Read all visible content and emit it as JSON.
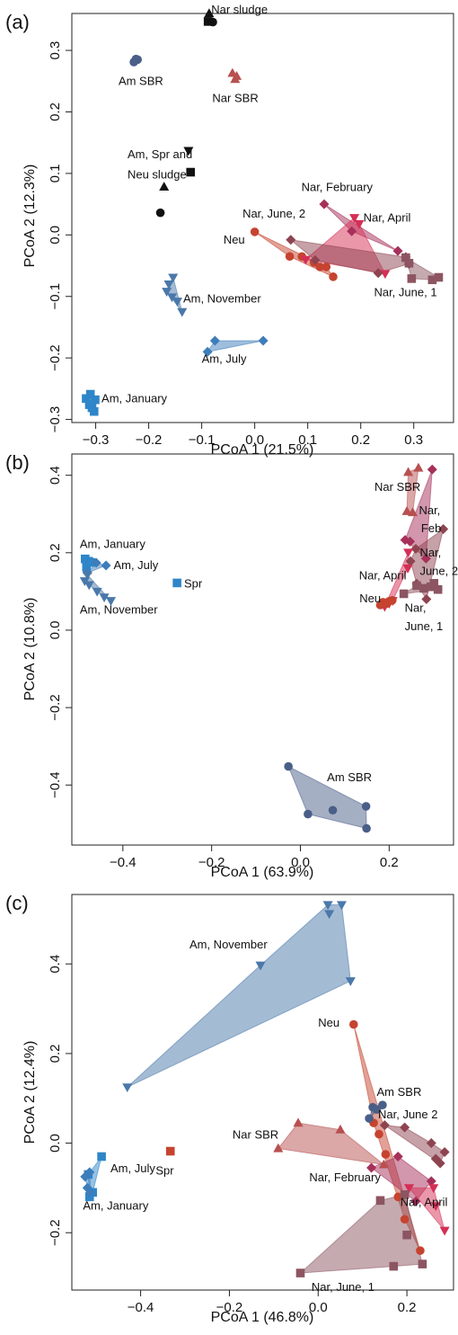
{
  "chart_data": [
    {
      "type": "scatter",
      "panel_label": "(a)",
      "xlabel": "PCoA 1 (21.5%)",
      "ylabel": "PCoA 2 (12.3%)",
      "xlim": [
        -0.345,
        0.375
      ],
      "ylim": [
        -0.305,
        0.36
      ],
      "xticks": [
        -0.3,
        -0.2,
        -0.1,
        0.0,
        0.1,
        0.2,
        0.3
      ],
      "xtick_labels": [
        "−0.3",
        "−0.2",
        "−0.1",
        "0.0",
        "0.1",
        "0.2",
        "0.3"
      ],
      "yticks": [
        -0.3,
        -0.2,
        -0.1,
        0.0,
        0.1,
        0.2,
        0.3
      ],
      "ytick_labels": [
        "−0.3",
        "−0.2",
        "−0.1",
        "0.0",
        "0.1",
        "0.2",
        "0.3"
      ],
      "grid": false,
      "series": [
        {
          "name": "Nar sludge",
          "marker": "triangle-up",
          "color": "#111111",
          "hull": false,
          "x": [
            -0.086
          ],
          "y": [
            0.36
          ]
        },
        {
          "name": "",
          "marker": "square",
          "color": "#111111",
          "hull": false,
          "x": [
            -0.088
          ],
          "y": [
            0.347
          ]
        },
        {
          "name": "",
          "marker": "circle",
          "color": "#111111",
          "hull": false,
          "x": [
            -0.079
          ],
          "y": [
            0.346
          ]
        },
        {
          "name": "Am, Spr and Neu sludge",
          "marker": "triangle-down",
          "color": "#111111",
          "hull": false,
          "x": [
            -0.125
          ],
          "y": [
            0.137
          ]
        },
        {
          "name": "",
          "marker": "square",
          "color": "#111111",
          "hull": false,
          "x": [
            -0.121
          ],
          "y": [
            0.102
          ]
        },
        {
          "name": "",
          "marker": "triangle-up",
          "color": "#111111",
          "hull": false,
          "x": [
            -0.171
          ],
          "y": [
            0.078
          ]
        },
        {
          "name": "",
          "marker": "circle",
          "color": "#111111",
          "hull": false,
          "x": [
            -0.178
          ],
          "y": [
            0.036
          ]
        },
        {
          "name": "Am SBR",
          "marker": "circle",
          "color": "#4a5f88",
          "hull": true,
          "x": [
            -0.228,
            -0.224,
            -0.221
          ],
          "y": [
            0.281,
            0.286,
            0.285
          ]
        },
        {
          "name": "Nar SBR",
          "marker": "triangle-up",
          "color": "#b85050",
          "hull": true,
          "x": [
            -0.042,
            -0.037,
            -0.034
          ],
          "y": [
            0.263,
            0.253,
            0.258
          ]
        },
        {
          "name": "Am, November",
          "marker": "triangle-down",
          "color": "#4a78aa",
          "hull": true,
          "x": [
            -0.154,
            -0.162,
            -0.166,
            -0.156,
            -0.146,
            -0.137
          ],
          "y": [
            -0.069,
            -0.08,
            -0.092,
            -0.101,
            -0.108,
            -0.125
          ]
        },
        {
          "name": "Am, July",
          "marker": "diamond",
          "color": "#3d7dba",
          "hull": true,
          "x": [
            -0.075,
            -0.089,
            0.016
          ],
          "y": [
            -0.172,
            -0.19,
            -0.172
          ]
        },
        {
          "name": "Am, January",
          "marker": "square",
          "color": "#2e86c8",
          "hull": true,
          "x": [
            -0.318,
            -0.31,
            -0.301,
            -0.312,
            -0.307,
            -0.303
          ],
          "y": [
            -0.266,
            -0.259,
            -0.268,
            -0.276,
            -0.281,
            -0.287
          ]
        },
        {
          "name": "Neu",
          "marker": "circle",
          "color": "#c5432f",
          "hull": true,
          "x": [
            0.0,
            0.066,
            0.089,
            0.112,
            0.135,
            0.148,
            0.123
          ],
          "y": [
            0.005,
            -0.035,
            -0.035,
            -0.045,
            -0.052,
            -0.068,
            -0.052
          ]
        },
        {
          "name": "Nar, February",
          "marker": "diamond",
          "color": "#a6305a",
          "hull": true,
          "x": [
            0.131,
            0.183,
            0.27
          ],
          "y": [
            0.05,
            0.006,
            -0.026
          ]
        },
        {
          "name": "Nar, April",
          "marker": "triangle-down",
          "color": "#d52f56",
          "hull": true,
          "x": [
            0.188,
            0.197,
            0.096,
            0.246
          ],
          "y": [
            0.028,
            0.018,
            -0.04,
            -0.063
          ]
        },
        {
          "name": "Nar, June, 2",
          "marker": "diamond",
          "color": "#8e4450",
          "hull": true,
          "x": [
            0.068,
            0.114,
            0.285,
            0.291,
            0.233
          ],
          "y": [
            -0.008,
            -0.041,
            -0.036,
            -0.047,
            -0.062
          ]
        },
        {
          "name": "Nar, June, 1",
          "marker": "square",
          "color": "#8c5561",
          "hull": true,
          "x": [
            0.285,
            0.291,
            0.296,
            0.335,
            0.347
          ],
          "y": [
            -0.037,
            -0.046,
            -0.071,
            -0.073,
            -0.069
          ]
        }
      ],
      "labels": [
        {
          "text": "Nar sludge",
          "x": -0.082,
          "y": 0.36
        },
        {
          "text": "Am SBR",
          "x": -0.257,
          "y": 0.244
        },
        {
          "text": "Nar SBR",
          "x": -0.08,
          "y": 0.216
        },
        {
          "text": "Am, Spr and",
          "x": -0.24,
          "y": 0.125
        },
        {
          "text": "Neu sludge",
          "x": -0.24,
          "y": 0.092
        },
        {
          "text": "Nar, February",
          "x": 0.088,
          "y": 0.071
        },
        {
          "text": "Nar, April",
          "x": 0.205,
          "y": 0.022
        },
        {
          "text": "Nar, June, 2",
          "x": -0.023,
          "y": 0.028
        },
        {
          "text": "Neu",
          "x": -0.059,
          "y": -0.014
        },
        {
          "text": "Nar, June, 1",
          "x": 0.225,
          "y": -0.1
        },
        {
          "text": "Am, November",
          "x": -0.135,
          "y": -0.11
        },
        {
          "text": "Am, July",
          "x": -0.1,
          "y": -0.208
        },
        {
          "text": "Am, January",
          "x": -0.289,
          "y": -0.272
        }
      ]
    },
    {
      "type": "scatter",
      "panel_label": "(b)",
      "xlabel": "PCoA 1 (63.9%)",
      "ylabel": "PCoA 2 (10.8%)",
      "xlim": [
        -0.515,
        0.345
      ],
      "ylim": [
        -0.555,
        0.455
      ],
      "xticks": [
        -0.4,
        -0.2,
        0.0,
        0.2
      ],
      "xtick_labels": [
        "−0.4",
        "−0.2",
        "0.0",
        "0.2"
      ],
      "yticks": [
        -0.4,
        -0.2,
        0.0,
        0.2,
        0.4
      ],
      "ytick_labels": [
        "−0.4",
        "−0.2",
        "0.0",
        "0.2",
        "0.4"
      ],
      "grid": false,
      "series": [
        {
          "name": "Am, January",
          "marker": "square",
          "color": "#2e86c8",
          "hull": true,
          "x": [
            -0.485,
            -0.477,
            -0.482,
            -0.472
          ],
          "y": [
            0.184,
            0.178,
            0.163,
            0.175
          ]
        },
        {
          "name": "Am, July",
          "marker": "diamond",
          "color": "#3d7dba",
          "hull": true,
          "x": [
            -0.46,
            -0.438,
            -0.48
          ],
          "y": [
            0.174,
            0.167,
            0.148
          ]
        },
        {
          "name": "Am, November",
          "marker": "triangle-down",
          "color": "#4a78aa",
          "hull": true,
          "x": [
            -0.48,
            -0.486,
            -0.476,
            -0.458,
            -0.442,
            -0.427
          ],
          "y": [
            0.143,
            0.127,
            0.117,
            0.1,
            0.085,
            0.076
          ]
        },
        {
          "name": "Spr",
          "marker": "square",
          "color": "#2e86c8",
          "hull": false,
          "x": [
            -0.278
          ],
          "y": [
            0.122
          ]
        },
        {
          "name": "Am SBR",
          "marker": "circle",
          "color": "#4a5f88",
          "hull": true,
          "x": [
            -0.027,
            0.017,
            0.073,
            0.148,
            0.149
          ],
          "y": [
            -0.352,
            -0.475,
            -0.465,
            -0.455,
            -0.512
          ]
        },
        {
          "name": "Nar SBR",
          "marker": "triangle-up",
          "color": "#b85050",
          "hull": true,
          "x": [
            0.243,
            0.266,
            0.24,
            0.253
          ],
          "y": [
            0.408,
            0.419,
            0.307,
            0.304
          ]
        },
        {
          "name": "Nar, Feb",
          "marker": "diamond",
          "color": "#a6305a",
          "hull": true,
          "x": [
            0.236,
            0.247,
            0.297,
            0.283
          ],
          "y": [
            0.233,
            0.229,
            0.415,
            0.185
          ]
        },
        {
          "name": "Nar, June, 2",
          "marker": "diamond",
          "color": "#8e4450",
          "hull": true,
          "x": [
            0.322,
            0.26,
            0.248,
            0.262,
            0.284
          ],
          "y": [
            0.261,
            0.21,
            0.178,
            0.12,
            0.08
          ]
        },
        {
          "name": "Nar, April",
          "marker": "triangle-down",
          "color": "#d52f56",
          "hull": true,
          "x": [
            0.243,
            0.242,
            0.19,
            0.208,
            0.2
          ],
          "y": [
            0.201,
            0.16,
            0.061,
            0.076,
            0.069
          ]
        },
        {
          "name": "Nar, June, 1",
          "marker": "square",
          "color": "#8c5561",
          "hull": true,
          "x": [
            0.262,
            0.278,
            0.294,
            0.31,
            0.301,
            0.233
          ],
          "y": [
            0.115,
            0.108,
            0.112,
            0.105,
            0.121,
            0.094
          ]
        },
        {
          "name": "Neu",
          "marker": "circle",
          "color": "#c5432f",
          "hull": true,
          "x": [
            0.18,
            0.186,
            0.193,
            0.199,
            0.207
          ],
          "y": [
            0.065,
            0.072,
            0.068,
            0.074,
            0.077
          ]
        }
      ],
      "labels": [
        {
          "text": "Am, January",
          "x": -0.497,
          "y": 0.212
        },
        {
          "text": "Am, July",
          "x": -0.421,
          "y": 0.158
        },
        {
          "text": "Am, November",
          "x": -0.497,
          "y": 0.043
        },
        {
          "text": "Spr",
          "x": -0.262,
          "y": 0.11
        },
        {
          "text": "Am SBR",
          "x": 0.06,
          "y": -0.39
        },
        {
          "text": "Nar SBR",
          "x": 0.167,
          "y": 0.36
        },
        {
          "text": "Nar,",
          "x": 0.267,
          "y": 0.3
        },
        {
          "text": "Feb",
          "x": 0.272,
          "y": 0.253
        },
        {
          "text": "Nar,",
          "x": 0.269,
          "y": 0.19
        },
        {
          "text": "June, 2",
          "x": 0.269,
          "y": 0.143
        },
        {
          "text": "Nar, April",
          "x": 0.132,
          "y": 0.131
        },
        {
          "text": "Neu",
          "x": 0.133,
          "y": 0.072
        },
        {
          "text": "Nar,",
          "x": 0.235,
          "y": 0.047
        },
        {
          "text": "June, 1",
          "x": 0.235,
          "y": 0.0
        }
      ]
    },
    {
      "type": "scatter",
      "panel_label": "(c)",
      "xlabel": "PCoA 1 (46.8%)",
      "ylabel": "PCoA 2 (12.4%)",
      "xlim": [
        -0.555,
        0.305
      ],
      "ylim": [
        -0.328,
        0.555
      ],
      "xticks": [
        -0.4,
        -0.2,
        0.0,
        0.2
      ],
      "xtick_labels": [
        "−0.4",
        "−0.2",
        "0.0",
        "0.2"
      ],
      "yticks": [
        -0.2,
        0.0,
        0.2,
        0.4
      ],
      "ytick_labels": [
        "−0.2",
        "0.0",
        "0.2",
        "0.4"
      ],
      "grid": false,
      "series": [
        {
          "name": "Am, November",
          "marker": "triangle-down",
          "color": "#4a78aa",
          "hull": true,
          "x": [
            0.022,
            0.025,
            0.053,
            0.073,
            -0.13,
            -0.43
          ],
          "y": [
            0.532,
            0.512,
            0.532,
            0.362,
            0.397,
            0.125
          ]
        },
        {
          "name": "Am, July",
          "marker": "square",
          "color": "#2e86c8",
          "hull": true,
          "x": [
            -0.488,
            -0.518,
            -0.508,
            -0.515
          ],
          "y": [
            -0.03,
            -0.07,
            -0.11,
            -0.12
          ]
        },
        {
          "name": "Am, January",
          "marker": "diamond",
          "color": "#3d7dba",
          "hull": true,
          "x": [
            -0.525,
            -0.515,
            -0.52,
            -0.513
          ],
          "y": [
            -0.075,
            -0.065,
            -0.1,
            -0.11
          ]
        },
        {
          "name": "Spr",
          "marker": "square",
          "color": "#c5432f",
          "hull": false,
          "x": [
            -0.333
          ],
          "y": [
            -0.018
          ]
        },
        {
          "name": "Neu",
          "marker": "circle",
          "color": "#c5432f",
          "hull": true,
          "x": [
            0.08,
            0.125,
            0.137,
            0.152,
            0.18,
            0.195,
            0.23
          ],
          "y": [
            0.265,
            0.045,
            0.02,
            -0.025,
            -0.12,
            -0.17,
            -0.24
          ]
        },
        {
          "name": "Am SBR",
          "marker": "circle",
          "color": "#4a5f88",
          "hull": true,
          "x": [
            0.115,
            0.123,
            0.132,
            0.145
          ],
          "y": [
            0.055,
            0.08,
            0.075,
            0.085
          ]
        },
        {
          "name": "Nar SBR",
          "marker": "triangle-up",
          "color": "#b85050",
          "hull": true,
          "x": [
            -0.045,
            -0.09,
            0.05,
            0.148
          ],
          "y": [
            0.045,
            -0.012,
            0.03,
            -0.048
          ]
        },
        {
          "name": "Nar, June 2",
          "marker": "diamond",
          "color": "#8e4450",
          "hull": true,
          "x": [
            0.15,
            0.195,
            0.255,
            0.265,
            0.275,
            0.285
          ],
          "y": [
            0.04,
            0.035,
            0.0,
            -0.035,
            -0.045,
            -0.02
          ]
        },
        {
          "name": "Nar, February",
          "marker": "diamond",
          "color": "#a6305a",
          "hull": true,
          "x": [
            0.12,
            0.22,
            0.255,
            0.18
          ],
          "y": [
            -0.055,
            -0.13,
            -0.085,
            -0.03
          ]
        },
        {
          "name": "Nar, April",
          "marker": "triangle-down",
          "color": "#d52f56",
          "hull": true,
          "x": [
            0.205,
            0.26,
            0.265,
            0.285
          ],
          "y": [
            -0.1,
            -0.1,
            -0.14,
            -0.195
          ]
        },
        {
          "name": "Nar, June, 1",
          "marker": "square",
          "color": "#8c5561",
          "hull": true,
          "x": [
            -0.04,
            0.14,
            0.195,
            0.2,
            0.235,
            0.17
          ],
          "y": [
            -0.29,
            -0.128,
            -0.115,
            -0.205,
            -0.27,
            -0.275
          ]
        }
      ],
      "labels": [
        {
          "text": "Am, November",
          "x": -0.29,
          "y": 0.435
        },
        {
          "text": "Neu",
          "x": 0.0,
          "y": 0.26
        },
        {
          "text": "Am SBR",
          "x": 0.132,
          "y": 0.105
        },
        {
          "text": "Nar, June 2",
          "x": 0.135,
          "y": 0.055
        },
        {
          "text": "Nar SBR",
          "x": -0.193,
          "y": 0.01
        },
        {
          "text": "Nar, February",
          "x": -0.02,
          "y": -0.085
        },
        {
          "text": "Nar, April",
          "x": 0.185,
          "y": -0.14
        },
        {
          "text": "Am, July",
          "x": -0.468,
          "y": -0.065
        },
        {
          "text": "Spr",
          "x": -0.366,
          "y": -0.07
        },
        {
          "text": "Am, January",
          "x": -0.53,
          "y": -0.148
        },
        {
          "text": "Nar, June, 1",
          "x": -0.015,
          "y": -0.33
        }
      ]
    }
  ]
}
